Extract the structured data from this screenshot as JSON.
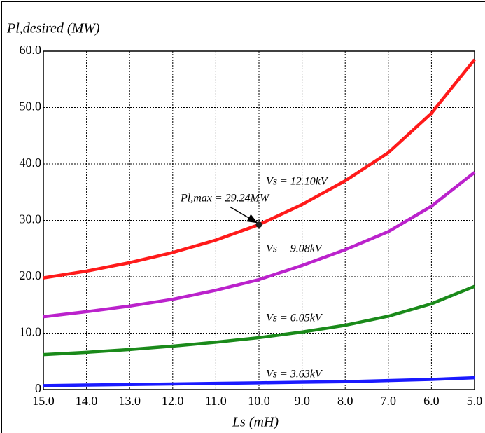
{
  "chart_data": {
    "type": "line",
    "y_label": "Pl,desired (MW)",
    "x_label": "Ls (mH)",
    "x": [
      15,
      14,
      13,
      12,
      11,
      10,
      9,
      8,
      7,
      6,
      5
    ],
    "series": [
      {
        "name": "Vs = 12.10kV",
        "color": "#ff1a1a",
        "values": [
          19.8,
          21,
          22.5,
          24.3,
          26.5,
          29.24,
          32.8,
          37,
          42,
          49,
          58.5
        ]
      },
      {
        "name": "Vs = 9.08kV",
        "color": "#bb22cc",
        "values": [
          12.9,
          13.8,
          14.8,
          16,
          17.6,
          19.5,
          22,
          24.8,
          28,
          32.5,
          38.5
        ]
      },
      {
        "name": "Vs = 6.05kV",
        "color": "#1a8a1a",
        "values": [
          6.2,
          6.6,
          7.1,
          7.7,
          8.4,
          9.2,
          10.2,
          11.4,
          13,
          15.2,
          18.3
        ]
      },
      {
        "name": "Vs = 3.63kV",
        "color": "#1a1aff",
        "values": [
          0.7,
          0.8,
          0.9,
          1.0,
          1.1,
          1.2,
          1.3,
          1.4,
          1.6,
          1.8,
          2.1
        ]
      }
    ],
    "xlim": [
      15,
      5
    ],
    "ylim": [
      0,
      60
    ],
    "xticks": [
      {
        "value": 15,
        "label": "15.0"
      },
      {
        "value": 14,
        "label": "14.0"
      },
      {
        "value": 13,
        "label": "13.0"
      },
      {
        "value": 12,
        "label": "12.0"
      },
      {
        "value": 11,
        "label": "11.0"
      },
      {
        "value": 10,
        "label": "10.0"
      },
      {
        "value": 9,
        "label": "9.0"
      },
      {
        "value": 8,
        "label": "8.0"
      },
      {
        "value": 7,
        "label": "7.0"
      },
      {
        "value": 6,
        "label": "6.0"
      },
      {
        "value": 5,
        "label": "5.0"
      }
    ],
    "yticks": [
      0,
      {
        "value": 10,
        "label": "10.0"
      },
      {
        "value": 20,
        "label": "20.0"
      },
      {
        "value": 30,
        "label": "30.0"
      },
      {
        "value": 40,
        "label": "40.0"
      },
      {
        "value": 50,
        "label": "50.0"
      },
      {
        "value": 60,
        "label": "60.0"
      }
    ],
    "grid": true,
    "annotation": {
      "text": "Pl,max = 29.24MW",
      "x": 10,
      "y": 29.24
    }
  }
}
